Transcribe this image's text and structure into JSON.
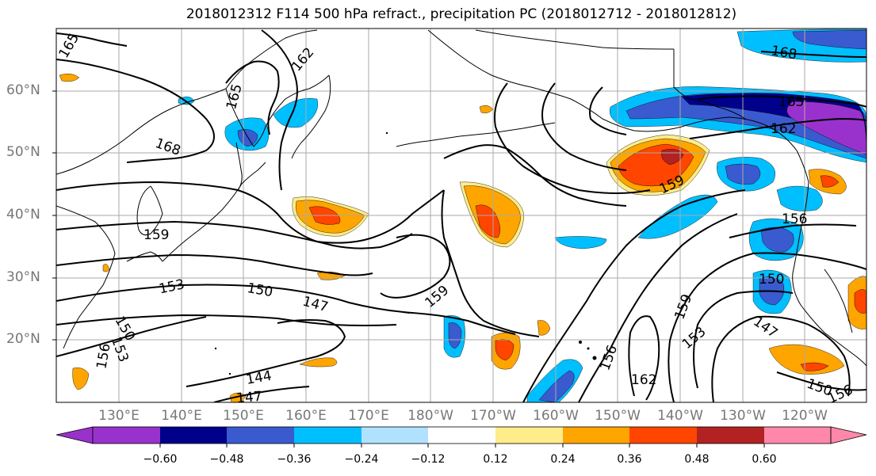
{
  "title": "2018012312 F114 500 hPa refract., precipitation PC (2018012712 - 2018012812)",
  "lat_labels": [
    "60°N",
    "50°N",
    "40°N",
    "30°N",
    "20°N"
  ],
  "lon_labels": [
    "130°E",
    "140°E",
    "150°E",
    "160°E",
    "170°E",
    "180°W",
    "170°W",
    "160°W",
    "150°W",
    "140°W",
    "130°W",
    "120°W"
  ],
  "contour_labels": [
    "165",
    "162",
    "165",
    "168",
    "159",
    "153",
    "150",
    "147",
    "144",
    "147",
    "150",
    "153",
    "156",
    "159",
    "159",
    "156",
    "159",
    "153",
    "162",
    "168",
    "165",
    "162",
    "156",
    "150",
    "147",
    "150",
    "156"
  ],
  "colorbar": {
    "labels": [
      "−0.60",
      "−0.48",
      "−0.36",
      "−0.24",
      "−0.12",
      "0.12",
      "0.24",
      "0.36",
      "0.48",
      "0.60"
    ],
    "colors": [
      "#9932cc",
      "#00008b",
      "#3a5bcf",
      "#00bfff",
      "#b0e2ff",
      "#ffffff",
      "#ffec8b",
      "#ffa500",
      "#ff4500",
      "#b22222",
      "#ff88aa"
    ]
  },
  "colors": {
    "contour": "#000000",
    "coast": "#000000",
    "grid": "#aaaaaa",
    "axis_label": "#777777"
  }
}
